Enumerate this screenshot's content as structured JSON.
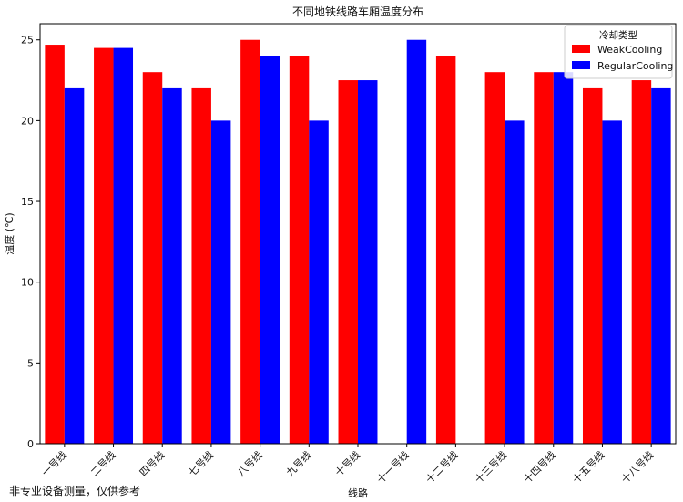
{
  "chart_data": {
    "type": "bar",
    "title": "不同地铁线路车厢温度分布",
    "xlabel": "线路",
    "ylabel": "温度 (℃)",
    "ylim": [
      0,
      26
    ],
    "yticks": [
      0,
      5,
      10,
      15,
      20,
      25
    ],
    "grid": false,
    "legend": {
      "title": "冷却类型",
      "placement": "top-right"
    },
    "categories": [
      "一号线",
      "二号线",
      "四号线",
      "七号线",
      "八号线",
      "九号线",
      "十号线",
      "十一号线",
      "十二号线",
      "十三号线",
      "十四号线",
      "十五号线",
      "十八号线"
    ],
    "series": [
      {
        "name": "WeakCooling",
        "color": "#ff0000",
        "values": [
          24.7,
          24.5,
          23.0,
          22.0,
          25.0,
          24.0,
          22.5,
          null,
          24.0,
          23.0,
          23.0,
          22.0,
          22.5
        ]
      },
      {
        "name": "RegularCooling",
        "color": "#0000ff",
        "values": [
          22.0,
          24.5,
          22.0,
          20.0,
          24.0,
          20.0,
          22.5,
          25.0,
          null,
          20.0,
          23.0,
          20.0,
          22.0
        ]
      }
    ]
  },
  "footnote": "非专业设备测量，仅供参考"
}
